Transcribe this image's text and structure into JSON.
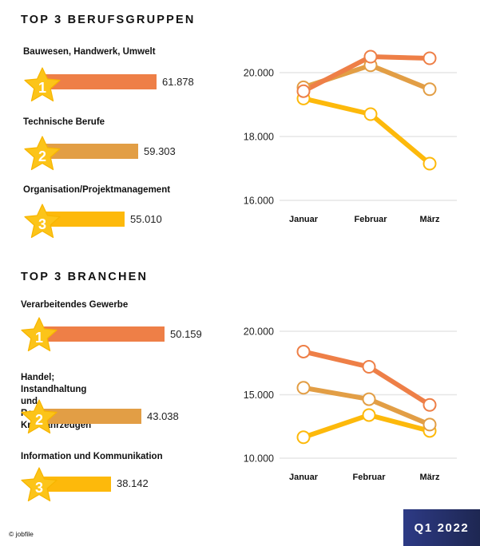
{
  "sections": [
    {
      "title": "TOP 3 BERUFSGRUPPEN",
      "items": [
        {
          "rank": "1",
          "label": "Bauwesen, Handwerk, Umwelt",
          "value": "61.878",
          "color": "#ee7f47"
        },
        {
          "rank": "2",
          "label": "Technische Berufe",
          "value": "59.303",
          "color": "#e29e45"
        },
        {
          "rank": "3",
          "label": "Organisation/Projektmanagement",
          "value": "55.010",
          "color": "#fdb90b"
        }
      ]
    },
    {
      "title": "TOP 3 BRANCHEN",
      "items": [
        {
          "rank": "1",
          "label": "Verarbeitendes Gewerbe",
          "value": "50.159",
          "color": "#ee7f47"
        },
        {
          "rank": "2",
          "label": "Handel; Instandhaltung und\nReparatur von Kraftfahrzeugen",
          "value": "43.038",
          "color": "#e29e45"
        },
        {
          "rank": "3",
          "label": "Information und Kommunikation",
          "value": "38.142",
          "color": "#fdb90b"
        }
      ]
    }
  ],
  "chart_data": [
    {
      "type": "line",
      "title": "TOP 3 BERUFSGRUPPEN",
      "categories": [
        "Januar",
        "Februar",
        "März"
      ],
      "x": [
        "Januar",
        "Februar",
        "März"
      ],
      "yticks": [
        16000,
        18000,
        20000
      ],
      "ytick_labels": [
        "16.000",
        "18.000",
        "20.000"
      ],
      "ylim": [
        16000,
        21000
      ],
      "grid": true,
      "legend": "none",
      "xlabel": "",
      "ylabel": "",
      "series": [
        {
          "name": "Bauwesen, Handwerk, Umwelt",
          "color": "#ee7f47",
          "values": [
            19420,
            20500,
            20450
          ]
        },
        {
          "name": "Technische Berufe",
          "color": "#e29e45",
          "values": [
            19540,
            20230,
            19480
          ]
        },
        {
          "name": "Organisation/Projektmanagement",
          "color": "#fdb90b",
          "values": [
            19190,
            18700,
            17150
          ]
        }
      ]
    },
    {
      "type": "line",
      "title": "TOP 3 BRANCHEN",
      "categories": [
        "Januar",
        "Februar",
        "März"
      ],
      "x": [
        "Januar",
        "Februar",
        "März"
      ],
      "yticks": [
        10000,
        15000,
        20000
      ],
      "ytick_labels": [
        "10.000",
        "15.000",
        "20.000"
      ],
      "ylim": [
        10000,
        20000
      ],
      "grid": true,
      "legend": "none",
      "xlabel": "",
      "ylabel": "",
      "series": [
        {
          "name": "Verarbeitendes Gewerbe",
          "color": "#ee7f47",
          "values": [
            18400,
            17200,
            14200
          ]
        },
        {
          "name": "Handel; Instandhaltung und Reparatur von Kraftfahrzeugen",
          "color": "#e29e45",
          "values": [
            15550,
            14650,
            12650
          ]
        },
        {
          "name": "Information und Kommunikation",
          "color": "#fdb90b",
          "values": [
            11650,
            13400,
            12150
          ]
        }
      ]
    }
  ],
  "footer": {
    "copyright": "© jobfile",
    "badge": "Q1 2022"
  },
  "colors": {
    "orange": "#ee7f47",
    "tan": "#e29e45",
    "yellow": "#fdb90b",
    "star": "#fcc419",
    "badge_start": "#2d3a85",
    "badge_end": "#1e2752",
    "grid": "#e6e6e6"
  }
}
